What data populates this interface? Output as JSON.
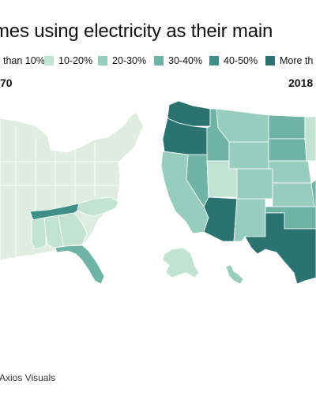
{
  "title": "mes using electricity as their main",
  "legend": [
    {
      "label": "than 10%",
      "color": "#dfece0"
    },
    {
      "label": "10-20%",
      "color": "#c2e3d4"
    },
    {
      "label": "20-30%",
      "color": "#97cdbc"
    },
    {
      "label": "30-40%",
      "color": "#6fb3a6"
    },
    {
      "label": "40-50%",
      "color": "#3f8f89"
    },
    {
      "label": "More th",
      "color": "#2a7371"
    }
  ],
  "maps": [
    {
      "year": "70",
      "states": {
        "TN": "40-50%",
        "NC": "10-20%",
        "AL": "10-20%",
        "GA": "10-20%",
        "MS": "10-20%",
        "FL": "30-40%",
        "other": "than 10%"
      }
    },
    {
      "year": "2018",
      "states": {
        "WA": "More th",
        "OR": "More th",
        "AZ": "More th",
        "TX": "More th",
        "ID": "30-40%",
        "NV": "30-40%",
        "CA": "20-30%",
        "MT": "20-30%",
        "WY": "20-30%",
        "UT": "10-20%",
        "CO": "20-30%",
        "NM": "20-30%",
        "ND": "30-40%",
        "SD": "30-40%",
        "NE": "20-30%",
        "KS": "20-30%",
        "OK": "30-40%",
        "MN": "10-20%",
        "AK": "10-20%",
        "HI": "20-30%"
      }
    }
  ],
  "source": "Axios Visuals"
}
